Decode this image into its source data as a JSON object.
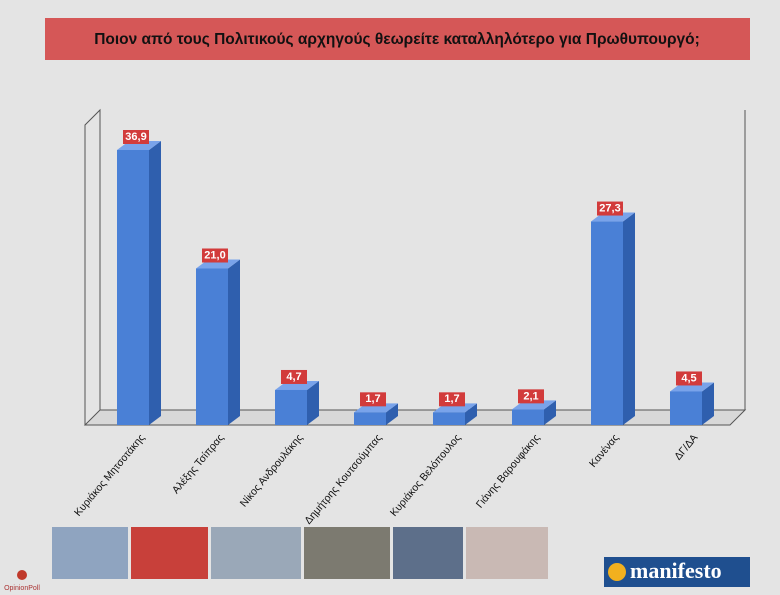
{
  "chart_data": {
    "type": "bar3d",
    "title": "Ποιον από τους Πολιτικούς αρχηγούς θεωρείτε καταλληλότερο για Πρωθυπουργό;",
    "categories": [
      "Κυριάκος Μητσοτάκης",
      "Αλέξης Τσίπρας",
      "Νίκος Ανδρουλάκης",
      "Δημήτρης Κουτσούμπας",
      "Κυριάκος Βελόπουλος",
      "Γιάνης Βαρουφάκης",
      "Κανένας",
      "ΔΓ/ΔΑ"
    ],
    "values": [
      36.9,
      21.0,
      4.7,
      1.7,
      1.7,
      2.1,
      27.3,
      4.5
    ],
    "value_labels": [
      "36,9",
      "21,0",
      "4,7",
      "1,7",
      "1,7",
      "2,1",
      "27,3",
      "4,5"
    ],
    "color": "#4a80d6"
  },
  "branding": {
    "logo": "manifesto",
    "pollster": "OpinionPoll"
  }
}
